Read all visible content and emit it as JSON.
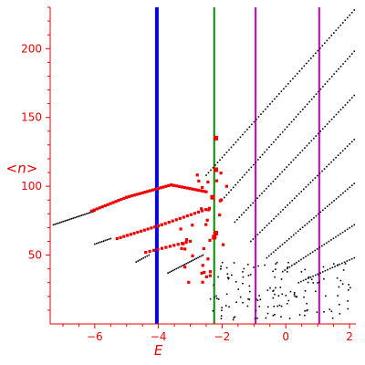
{
  "chart_data": {
    "type": "scatter",
    "title": "",
    "xlabel": "E",
    "ylabel": "<n>",
    "xlim": [
      -7.4,
      2.2
    ],
    "ylim": [
      0,
      230
    ],
    "x_ticks": [
      -6,
      -4,
      -2,
      0,
      2
    ],
    "y_ticks": [
      50,
      100,
      150,
      200
    ],
    "axis_color": "#ee0000",
    "grid": false,
    "legend": "none",
    "vertical_lines": [
      {
        "x": -4.05,
        "color": "#0000ee",
        "style": "thick"
      },
      {
        "x": -2.25,
        "color": "#008800",
        "style": "medium"
      },
      {
        "x": -0.95,
        "color": "#cc00cc",
        "style": "medium"
      },
      {
        "x": 1.05,
        "color": "#cc00cc",
        "style": "medium"
      }
    ],
    "series": [
      {
        "color": "#000000",
        "marker": "dot",
        "curves": [
          {
            "x0": -7.3,
            "x1": -6.0,
            "y0": 72,
            "y1": 82,
            "n": 26
          },
          {
            "x0": -6.0,
            "x1": -5.5,
            "y0": 58,
            "y1": 62,
            "n": 10
          },
          {
            "x0": -4.7,
            "x1": -4.3,
            "y0": 45,
            "y1": 50,
            "n": 8
          },
          {
            "x0": -3.7,
            "x1": -2.6,
            "y0": 37,
            "y1": 50,
            "n": 22
          },
          {
            "x0": -2.5,
            "x1": 2.15,
            "y0": 108,
            "y1": 228,
            "n": 66
          },
          {
            "x0": -2.0,
            "x1": 2.15,
            "y0": 90,
            "y1": 198,
            "n": 60
          },
          {
            "x0": -1.6,
            "x1": 2.15,
            "y0": 74,
            "y1": 166,
            "n": 54
          },
          {
            "x0": -1.1,
            "x1": 2.15,
            "y0": 60,
            "y1": 134,
            "n": 46
          },
          {
            "x0": -0.6,
            "x1": 2.15,
            "y0": 48,
            "y1": 102,
            "n": 40
          },
          {
            "x0": -0.1,
            "x1": 2.15,
            "y0": 38,
            "y1": 72,
            "n": 32
          },
          {
            "x0": 0.4,
            "x1": 2.15,
            "y0": 30,
            "y1": 48,
            "n": 24
          }
        ],
        "scatter": {
          "x0": -2.4,
          "x1": 2.15,
          "y0": 3,
          "y1": 45,
          "n": 140
        }
      },
      {
        "color": "#ee0000",
        "marker": "square",
        "curves": [
          {
            "x0": -6.1,
            "x1": -5.0,
            "y0": 82,
            "y1": 92,
            "n": 14
          },
          {
            "x0": -5.0,
            "x1": -3.6,
            "y0": 92,
            "y1": 101,
            "n": 18
          },
          {
            "x0": -3.6,
            "x1": -2.5,
            "y0": 101,
            "y1": 96,
            "n": 14
          },
          {
            "x0": -5.3,
            "x1": -3.9,
            "y0": 62,
            "y1": 72,
            "n": 14
          },
          {
            "x0": -3.9,
            "x1": -2.4,
            "y0": 72,
            "y1": 84,
            "n": 14
          },
          {
            "x0": -4.4,
            "x1": -3.0,
            "y0": 52,
            "y1": 60,
            "n": 12
          }
        ],
        "scatter": {
          "x0": -3.3,
          "x1": -1.8,
          "y0": 30,
          "y1": 110,
          "n": 34
        },
        "highlights": [
          {
            "x": -2.2,
            "y": 135
          },
          {
            "x": -2.2,
            "y": 112
          },
          {
            "x": -2.3,
            "y": 92
          },
          {
            "x": -2.25,
            "y": 63
          },
          {
            "x": -2.2,
            "y": 66
          }
        ]
      }
    ]
  }
}
